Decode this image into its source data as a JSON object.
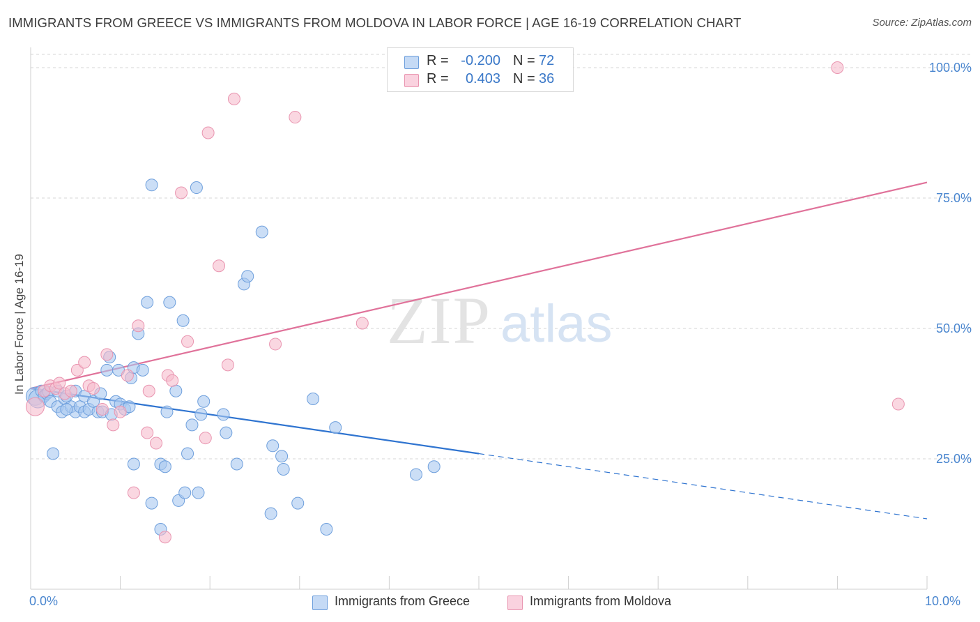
{
  "title": "IMMIGRANTS FROM GREECE VS IMMIGRANTS FROM MOLDOVA IN LABOR FORCE | AGE 16-19 CORRELATION CHART",
  "source": "Source: ZipAtlas.com",
  "watermark": {
    "zip": "ZIP",
    "atlas": "atlas"
  },
  "colors": {
    "greece_fill": "#a8c8f0",
    "greece_stroke": "#6e9fdc",
    "greece_line": "#2f74d0",
    "moldova_fill": "#f6bccd",
    "moldova_stroke": "#e995b0",
    "moldova_line": "#e0729a",
    "grid": "#d5d5d5",
    "axis_label": "#4a86cf"
  },
  "stats": {
    "r_label": "R =",
    "n_label": "N =",
    "greece": {
      "r": "-0.200",
      "n": "72"
    },
    "moldova": {
      "r": "0.403",
      "n": "36"
    }
  },
  "legend": {
    "greece": "Immigrants from Greece",
    "moldova": "Immigrants from Moldova"
  },
  "chart_data": {
    "type": "scatter",
    "title": "IMMIGRANTS FROM GREECE VS IMMIGRANTS FROM MOLDOVA IN LABOR FORCE | AGE 16-19 CORRELATION CHART",
    "xlabel": "",
    "ylabel": "In Labor Force | Age 16-19",
    "xlim": [
      0,
      10
    ],
    "ylim": [
      0,
      102
    ],
    "x_tick_labels": [
      "0.0%",
      "10.0%"
    ],
    "y_ticks": [
      25,
      50,
      75,
      100
    ],
    "y_tick_labels": [
      "25.0%",
      "50.0%",
      "75.0%",
      "100.0%"
    ],
    "grid": true,
    "series": [
      {
        "name": "Immigrants from Greece",
        "color": "#a8c8f0",
        "points": [
          [
            0.05,
            37
          ],
          [
            0.08,
            36.5
          ],
          [
            0.12,
            38
          ],
          [
            0.15,
            37
          ],
          [
            0.18,
            37.5
          ],
          [
            0.2,
            37.8
          ],
          [
            0.22,
            36
          ],
          [
            0.3,
            38
          ],
          [
            0.3,
            35
          ],
          [
            0.35,
            34
          ],
          [
            0.38,
            36.5
          ],
          [
            0.4,
            37
          ],
          [
            0.45,
            35
          ],
          [
            0.5,
            38
          ],
          [
            0.5,
            34
          ],
          [
            0.55,
            35
          ],
          [
            0.6,
            37
          ],
          [
            0.6,
            34
          ],
          [
            0.65,
            34.5
          ],
          [
            0.7,
            36
          ],
          [
            0.75,
            34
          ],
          [
            0.78,
            37.5
          ],
          [
            0.8,
            34
          ],
          [
            0.85,
            42
          ],
          [
            0.88,
            44.5
          ],
          [
            0.9,
            33.5
          ],
          [
            0.95,
            36
          ],
          [
            0.98,
            42
          ],
          [
            1.0,
            35.5
          ],
          [
            1.05,
            34.5
          ],
          [
            1.1,
            35
          ],
          [
            1.12,
            40.5
          ],
          [
            1.15,
            42.5
          ],
          [
            1.2,
            49
          ],
          [
            1.25,
            42
          ],
          [
            1.3,
            55
          ],
          [
            1.35,
            77.5
          ],
          [
            1.45,
            24
          ],
          [
            1.5,
            23.5
          ],
          [
            1.52,
            34
          ],
          [
            1.55,
            55
          ],
          [
            1.62,
            38
          ],
          [
            1.7,
            51.5
          ],
          [
            1.75,
            26
          ],
          [
            1.8,
            31.5
          ],
          [
            1.85,
            77
          ],
          [
            1.9,
            33.5
          ],
          [
            1.93,
            36
          ],
          [
            2.15,
            33.5
          ],
          [
            2.18,
            30
          ],
          [
            2.3,
            24
          ],
          [
            2.38,
            58.5
          ],
          [
            2.42,
            60
          ],
          [
            2.58,
            68.5
          ],
          [
            2.7,
            27.5
          ],
          [
            2.8,
            25.5
          ],
          [
            2.82,
            23
          ],
          [
            3.15,
            36.5
          ],
          [
            3.4,
            31
          ],
          [
            4.3,
            22
          ],
          [
            4.5,
            23.5
          ],
          [
            0.25,
            26
          ],
          [
            1.15,
            24
          ],
          [
            1.35,
            16.5
          ],
          [
            1.45,
            11.5
          ],
          [
            1.65,
            17
          ],
          [
            1.72,
            18.5
          ],
          [
            1.87,
            18.5
          ],
          [
            2.68,
            14.5
          ],
          [
            2.98,
            16.5
          ],
          [
            3.3,
            11.5
          ],
          [
            0.4,
            34.5
          ]
        ]
      },
      {
        "name": "Immigrants from Moldova",
        "color": "#f6bccd",
        "points": [
          [
            0.05,
            35
          ],
          [
            0.15,
            38
          ],
          [
            0.22,
            39
          ],
          [
            0.28,
            38.5
          ],
          [
            0.32,
            39.5
          ],
          [
            0.38,
            37.5
          ],
          [
            0.45,
            38
          ],
          [
            0.52,
            42
          ],
          [
            0.6,
            43.5
          ],
          [
            0.65,
            39
          ],
          [
            0.7,
            38.5
          ],
          [
            0.8,
            34.5
          ],
          [
            0.85,
            45
          ],
          [
            0.92,
            31.5
          ],
          [
            1.0,
            34
          ],
          [
            1.08,
            41
          ],
          [
            1.2,
            50.5
          ],
          [
            1.3,
            30
          ],
          [
            1.32,
            38
          ],
          [
            1.4,
            28
          ],
          [
            1.5,
            10
          ],
          [
            1.53,
            41
          ],
          [
            1.58,
            40
          ],
          [
            1.68,
            76
          ],
          [
            1.75,
            47.5
          ],
          [
            1.95,
            29
          ],
          [
            1.98,
            87.5
          ],
          [
            2.1,
            62
          ],
          [
            2.2,
            43
          ],
          [
            2.27,
            94
          ],
          [
            2.73,
            47
          ],
          [
            2.95,
            90.5
          ],
          [
            3.7,
            51
          ],
          [
            1.15,
            18.5
          ],
          [
            9.0,
            100
          ],
          [
            9.68,
            35.5
          ]
        ]
      }
    ],
    "trend_lines": [
      {
        "series": "Immigrants from Greece",
        "x_start": 0,
        "y_start": 38.5,
        "x_solid_end": 5.0,
        "y_solid_end": 26,
        "x_end": 10,
        "y_end": 13.5
      },
      {
        "series": "Immigrants from Moldova",
        "x_start": 0,
        "y_start": 38.5,
        "x_end": 10,
        "y_end": 78
      }
    ]
  }
}
